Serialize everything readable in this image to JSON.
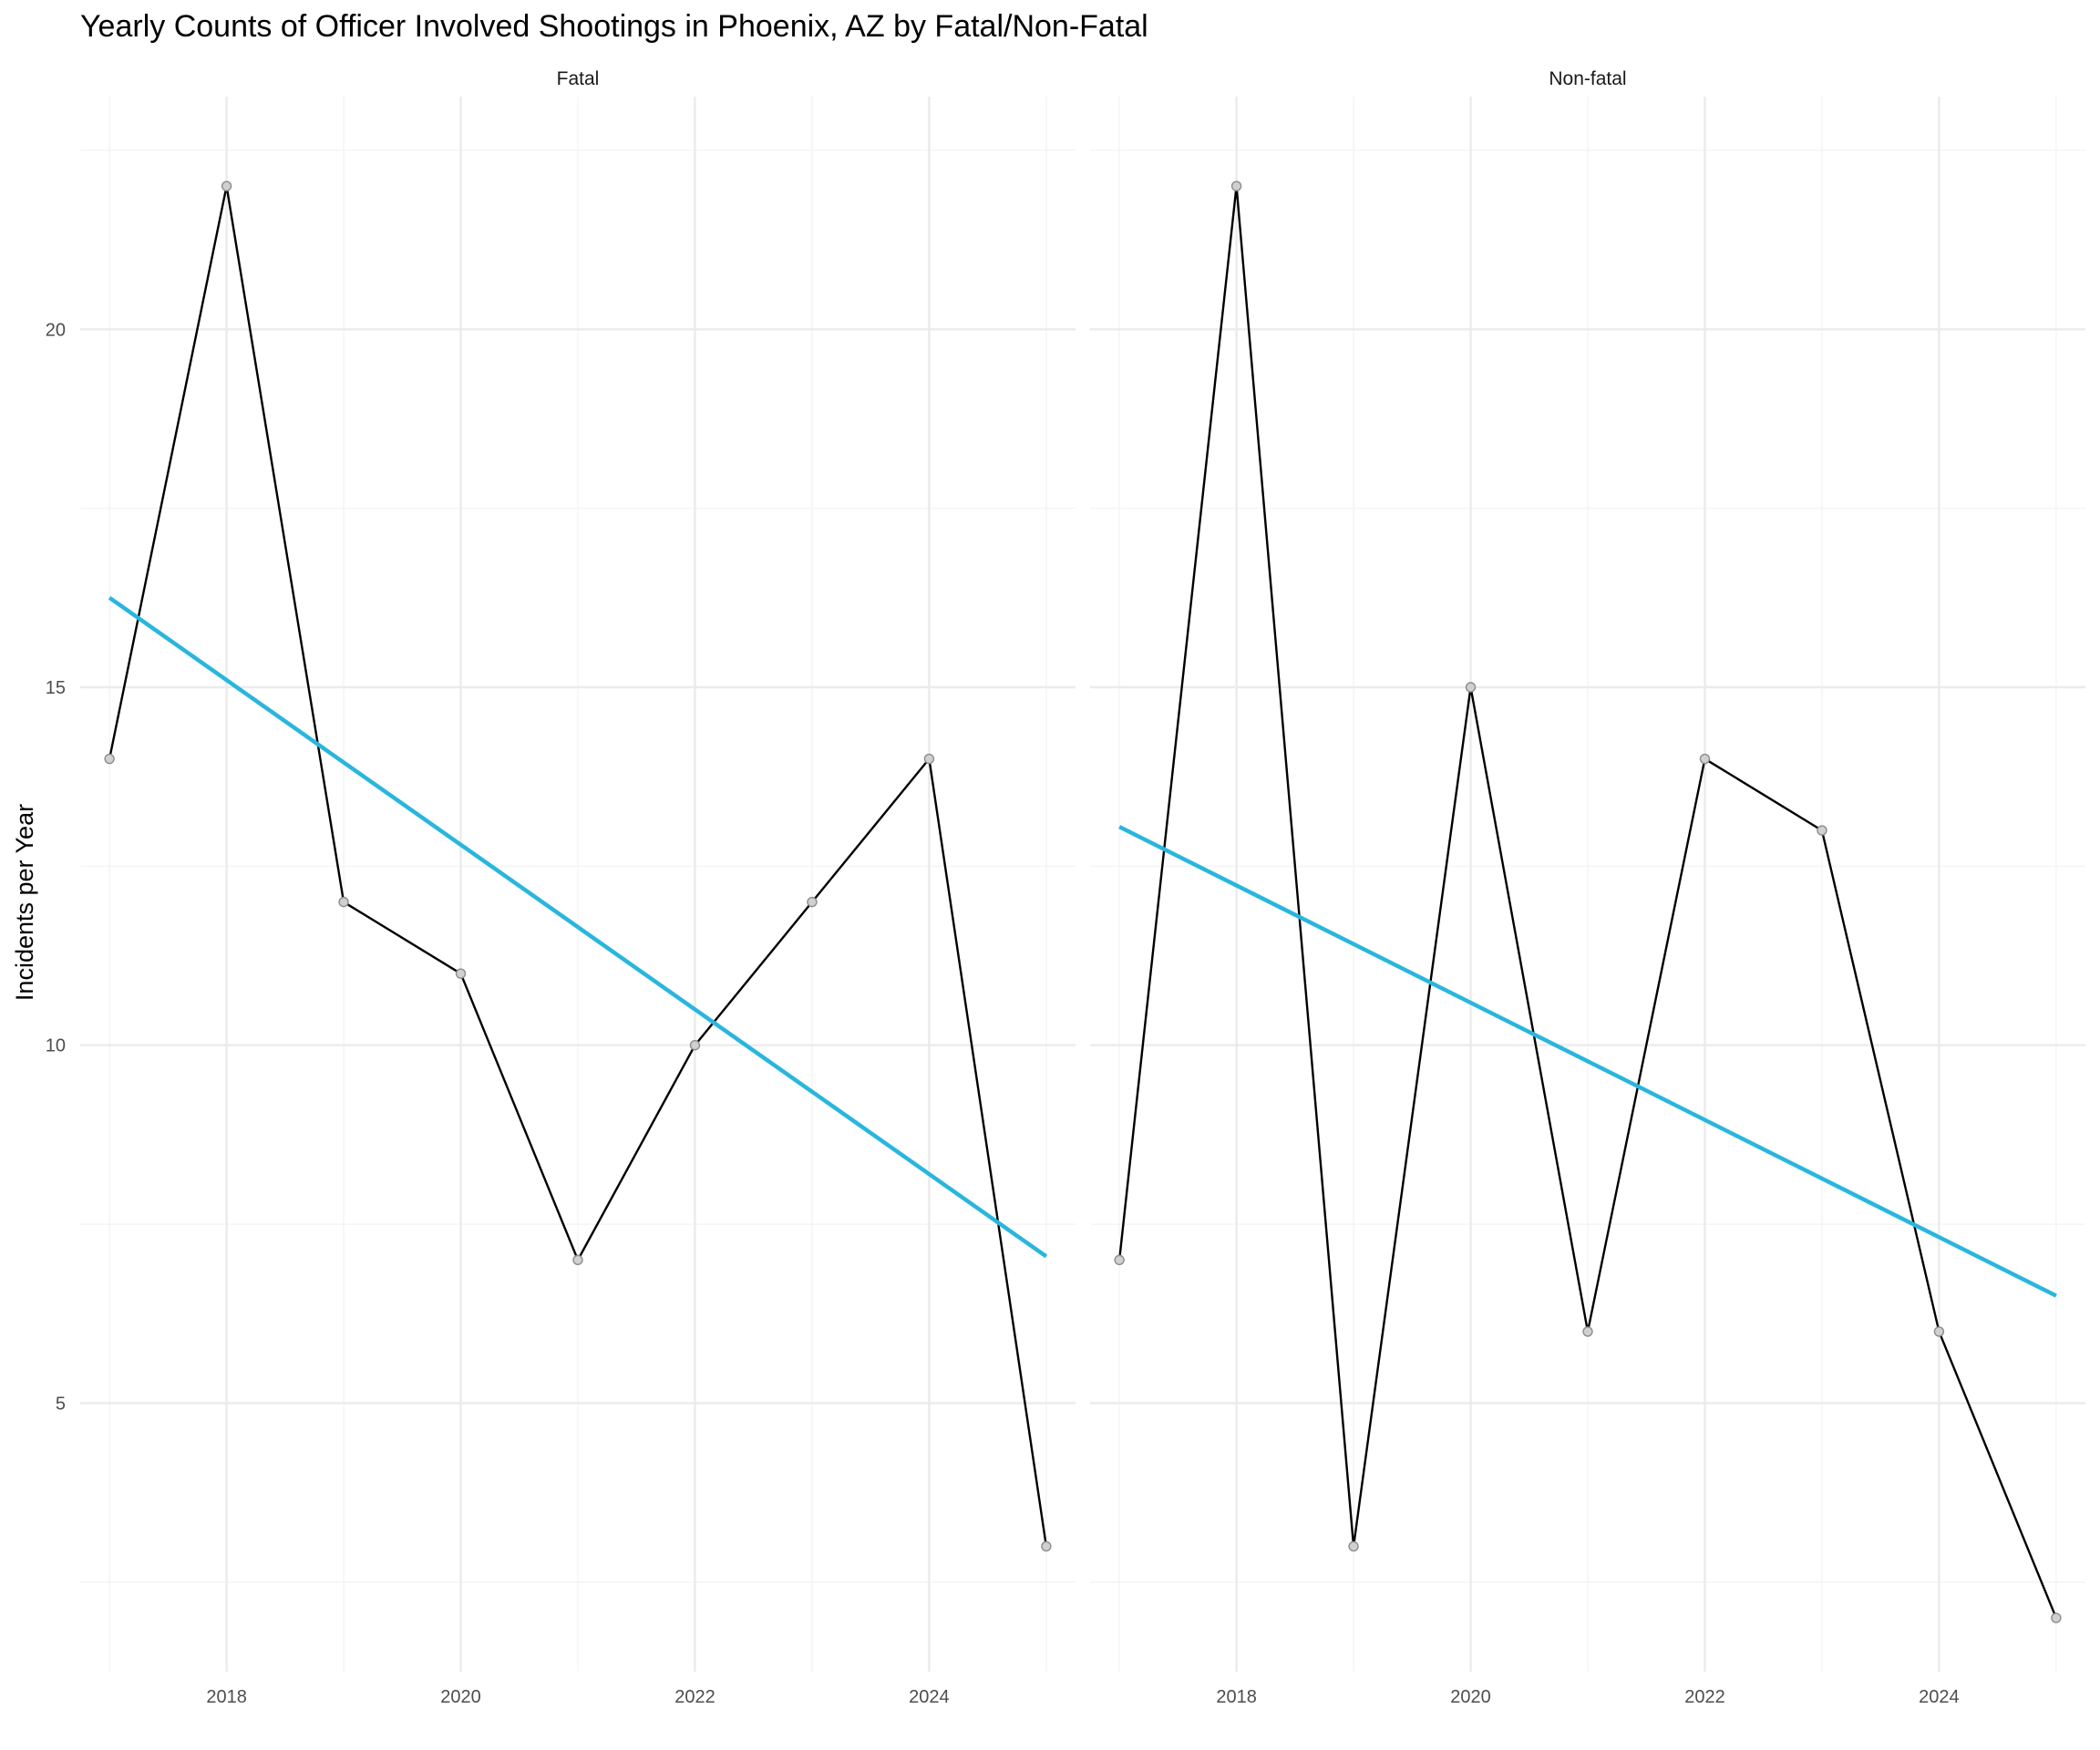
{
  "chart_data": {
    "type": "line",
    "title": "Yearly Counts of Officer Involved Shootings in Phoenix, AZ by Fatal/Non-Fatal",
    "xlabel": "",
    "ylabel": "Incidents per Year",
    "xlim": [
      2016.75,
      2025.25
    ],
    "ylim": [
      1.25,
      23.25
    ],
    "x_ticks": [
      2018,
      2020,
      2022,
      2024
    ],
    "y_ticks": [
      5,
      10,
      15,
      20
    ],
    "grid": true,
    "facets": [
      {
        "label": "Fatal",
        "x": [
          2017,
          2018,
          2019,
          2020,
          2021,
          2022,
          2023,
          2024,
          2025
        ],
        "y": [
          14,
          22,
          12,
          11,
          7,
          10,
          12,
          14,
          3
        ],
        "trend": {
          "x": [
            2017,
            2025
          ],
          "y": [
            16.25,
            7.05
          ]
        }
      },
      {
        "label": "Non-fatal",
        "x": [
          2017,
          2018,
          2019,
          2020,
          2021,
          2022,
          2023,
          2024,
          2025
        ],
        "y": [
          7,
          22,
          3,
          15,
          6,
          14,
          13,
          6,
          2
        ],
        "trend": {
          "x": [
            2017,
            2025
          ],
          "y": [
            13.05,
            6.5
          ]
        }
      }
    ],
    "colors": {
      "line": "#000000",
      "trend": "#29b6de",
      "point_fill": "#d0d0d0",
      "grid": "#ebebeb"
    }
  }
}
